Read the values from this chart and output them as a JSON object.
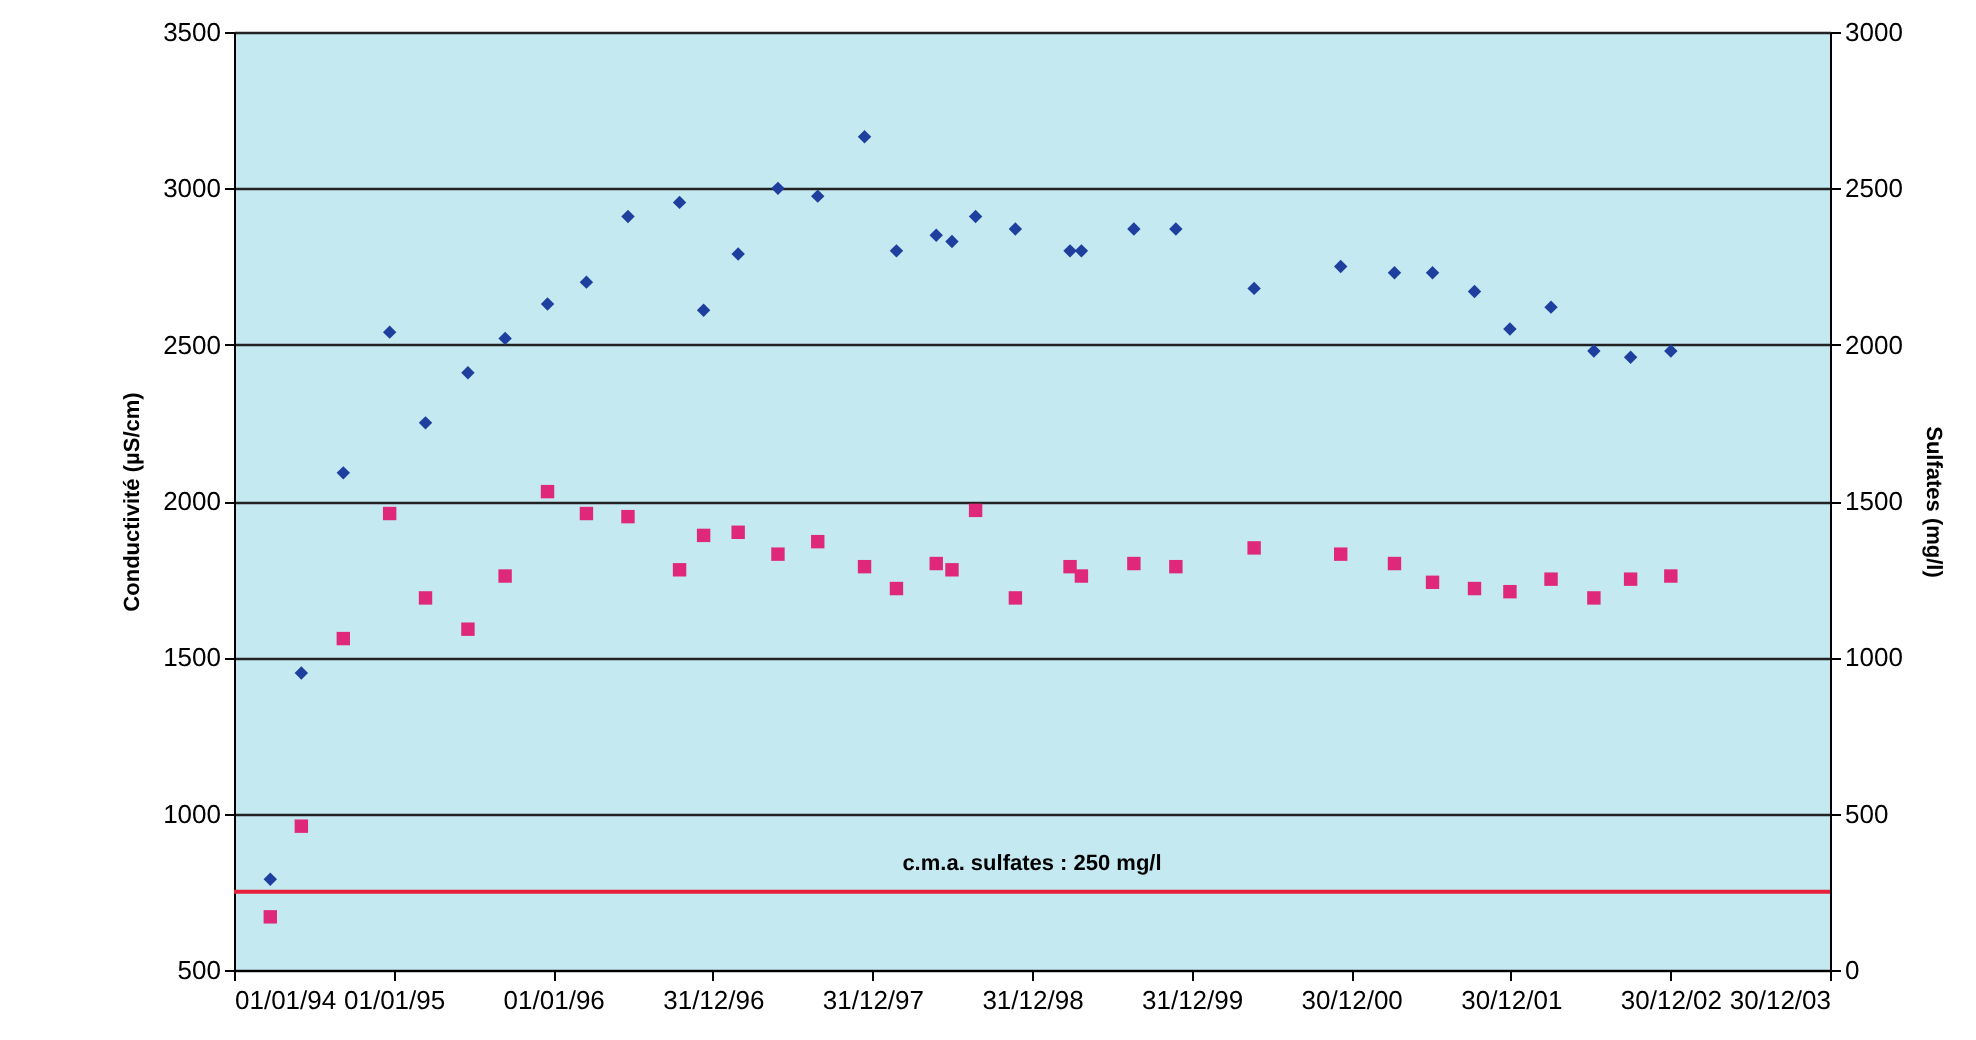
{
  "chart_data": {
    "type": "scatter",
    "ylabel": "Conductivité (µS/cm)",
    "y2label": "Sulfates (mg/l)",
    "xlim": [
      "1994-01-01",
      "2003-12-30"
    ],
    "xticks": [
      {
        "value": "1994-01-01",
        "label": "01/01/94"
      },
      {
        "value": "1995-01-01",
        "label": "01/01/95"
      },
      {
        "value": "1996-01-01",
        "label": "01/01/96"
      },
      {
        "value": "1996-12-31",
        "label": "31/12/96"
      },
      {
        "value": "1997-12-31",
        "label": "31/12/97"
      },
      {
        "value": "1998-12-31",
        "label": "31/12/98"
      },
      {
        "value": "1999-12-31",
        "label": "31/12/99"
      },
      {
        "value": "2000-12-30",
        "label": "30/12/00"
      },
      {
        "value": "2001-12-30",
        "label": "30/12/01"
      },
      {
        "value": "2002-12-30",
        "label": "30/12/02"
      },
      {
        "value": "2003-12-30",
        "label": "30/12/03"
      }
    ],
    "x": [
      "1994-03-25",
      "1994-06-04",
      "1994-09-08",
      "1994-12-23",
      "1995-03-15",
      "1995-06-20",
      "1995-09-13",
      "1995-12-19",
      "1996-03-17",
      "1996-06-20",
      "1996-10-16",
      "1996-12-10",
      "1997-02-27",
      "1997-05-29",
      "1997-08-28",
      "1997-12-13",
      "1998-02-24",
      "1998-05-26",
      "1998-07-01",
      "1998-08-24",
      "1998-11-23",
      "1999-03-28",
      "1999-04-23",
      "1999-08-21",
      "1999-11-25",
      "2000-05-22",
      "2000-12-06",
      "2001-04-08",
      "2001-07-04",
      "2001-10-08",
      "2001-12-28",
      "2002-04-01",
      "2002-07-08",
      "2002-09-30",
      "2002-12-31"
    ],
    "series": [
      {
        "color": "#1f3f9f",
        "marker": "diamond",
        "values": [
          790,
          1450,
          2090,
          2540,
          2250,
          2410,
          2520,
          2630,
          2700,
          2910,
          2955,
          2610,
          2790,
          3000,
          2975,
          3165,
          2800,
          2850,
          2830,
          2910,
          2870,
          2800,
          2800,
          2870,
          2870,
          2680,
          2750,
          2730,
          2730,
          2670,
          2550,
          2620,
          2480,
          2460,
          2480
        ]
      },
      {
        "color": "#e0287a",
        "marker": "square",
        "axis": "y2",
        "values": [
          170,
          460,
          1060,
          1460,
          1190,
          1090,
          1260,
          1530,
          1460,
          1450,
          1280,
          1390,
          1400,
          1330,
          1370,
          1290,
          1220,
          1300,
          1280,
          1470,
          1190,
          1290,
          1260,
          1300,
          1290,
          1350,
          1330,
          1300,
          1240,
          1220,
          1210,
          1250,
          1190,
          1250,
          1260
        ]
      }
    ],
    "ylim": [
      500,
      3500
    ],
    "yticks": [
      500,
      1000,
      1500,
      2000,
      2500,
      3000,
      3500
    ],
    "y2lim": [
      0,
      3000
    ],
    "y2ticks": [
      0,
      500,
      1000,
      1500,
      2000,
      2500,
      3000
    ],
    "ref_lines": [
      {
        "axis": "y2",
        "value": 250,
        "label": "c.m.a. sulfates : 250 mg/l",
        "color": "#e8203c"
      }
    ],
    "grid": "y"
  }
}
